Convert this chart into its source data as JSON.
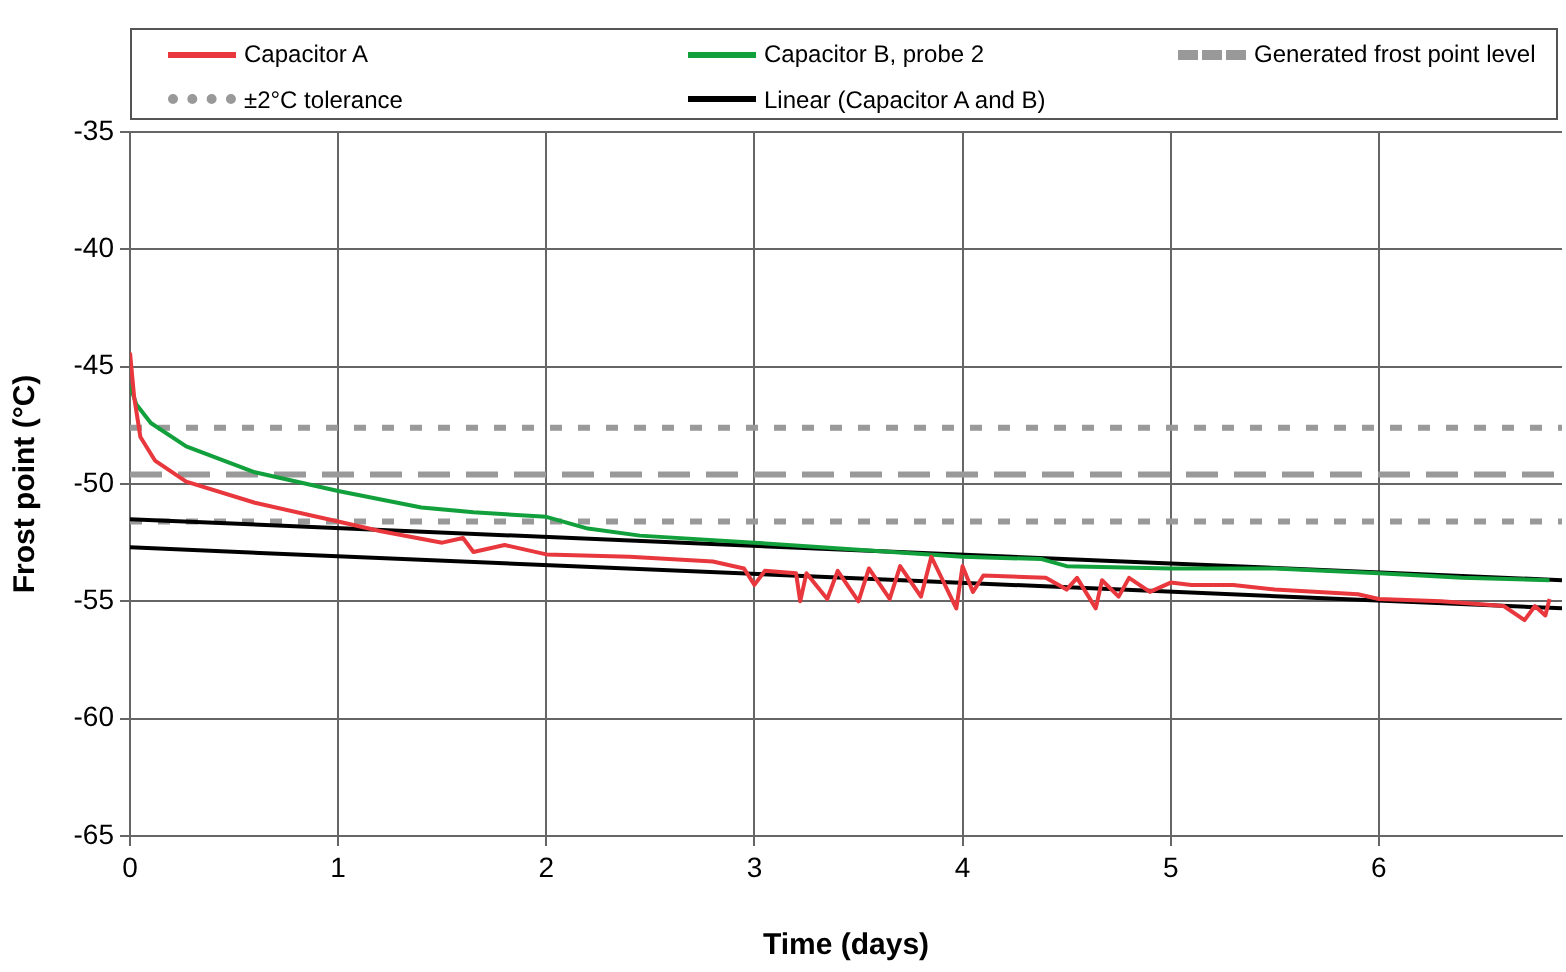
{
  "chart_data": {
    "type": "line",
    "xlabel": "Time (days)",
    "ylabel": "Frost point (°C)",
    "xlim": [
      0,
      6.88
    ],
    "xticks": [
      0,
      1,
      2,
      3,
      4,
      5,
      6
    ],
    "ylim": [
      -65,
      -35
    ],
    "yticks": [
      -65,
      -60,
      -55,
      -50,
      -45,
      -40,
      -35
    ],
    "grid": true,
    "legend": "top",
    "marker": "none",
    "series": [
      {
        "name": "Capacitor A",
        "color": "#e8383d",
        "line_style": "solid",
        "x": [
          0,
          0.02,
          0.05,
          0.12,
          0.27,
          0.6,
          1.0,
          1.2,
          1.5,
          1.6,
          1.65,
          1.8,
          2.0,
          2.4,
          2.8,
          2.95,
          3.0,
          3.05,
          3.2,
          3.22,
          3.25,
          3.35,
          3.4,
          3.5,
          3.55,
          3.65,
          3.7,
          3.8,
          3.85,
          3.97,
          4.0,
          4.05,
          4.1,
          4.4,
          4.5,
          4.55,
          4.64,
          4.67,
          4.75,
          4.8,
          4.9,
          5.0,
          5.1,
          5.3,
          5.5,
          5.9,
          6.0,
          6.3,
          6.6,
          6.7,
          6.75,
          6.8,
          6.82
        ],
        "values": [
          -44.4,
          -46.3,
          -48.0,
          -49.0,
          -49.9,
          -50.8,
          -51.6,
          -52.0,
          -52.5,
          -52.3,
          -52.9,
          -52.6,
          -53.0,
          -53.1,
          -53.3,
          -53.6,
          -54.3,
          -53.7,
          -53.8,
          -55.0,
          -53.8,
          -54.9,
          -53.7,
          -55.0,
          -53.6,
          -54.9,
          -53.5,
          -54.8,
          -53.1,
          -55.3,
          -53.5,
          -54.6,
          -53.9,
          -54.0,
          -54.5,
          -54.0,
          -55.3,
          -54.1,
          -54.8,
          -54.0,
          -54.6,
          -54.2,
          -54.3,
          -54.3,
          -54.5,
          -54.7,
          -54.9,
          -55.0,
          -55.2,
          -55.8,
          -55.2,
          -55.6,
          -54.9
        ]
      },
      {
        "name": "Capacitor B, probe 2",
        "color": "#12a03c",
        "line_style": "solid",
        "x": [
          0,
          0.03,
          0.1,
          0.27,
          0.6,
          1.0,
          1.4,
          1.65,
          2.0,
          2.2,
          2.45,
          3.0,
          3.5,
          4.0,
          4.38,
          4.5,
          5.0,
          5.5,
          6.0,
          6.4,
          6.82
        ],
        "values": [
          -45.8,
          -46.6,
          -47.4,
          -48.4,
          -49.5,
          -50.3,
          -51.0,
          -51.2,
          -51.4,
          -51.9,
          -52.2,
          -52.5,
          -52.8,
          -53.1,
          -53.2,
          -53.5,
          -53.6,
          -53.6,
          -53.8,
          -54.0,
          -54.1
        ]
      },
      {
        "name": "Generated frost point level",
        "color": "#999999",
        "line_style": "dashed",
        "x": [
          0,
          6.88
        ],
        "values": [
          -49.6,
          -49.6
        ]
      },
      {
        "name": "±2°C tolerance",
        "color": "#999999",
        "line_style": "dotted",
        "x": [
          0,
          6.88
        ],
        "values": [
          -47.6,
          -47.6
        ]
      },
      {
        "name": "Linear (Capacitor A and B)",
        "color": "#000000",
        "line_style": "solid",
        "x": [
          0,
          6.88
        ],
        "values": [
          -51.5,
          -54.1
        ]
      },
      {
        "color": "#999999",
        "line_style": "dotted",
        "x": [
          0,
          6.88
        ],
        "values": [
          -51.6,
          -51.6
        ]
      },
      {
        "color": "#000000",
        "line_style": "solid",
        "x": [
          0,
          6.88
        ],
        "values": [
          -52.7,
          -55.3
        ]
      }
    ]
  }
}
